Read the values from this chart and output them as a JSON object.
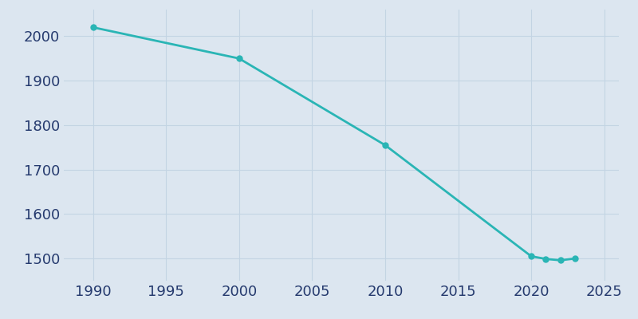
{
  "years": [
    1990,
    2000,
    2010,
    2020,
    2021,
    2022,
    2023
  ],
  "population": [
    2020,
    1950,
    1755,
    1505,
    1499,
    1496,
    1500
  ],
  "line_color": "#2ab5b5",
  "marker_color": "#2ab5b5",
  "background_color": "#dce6f0",
  "plot_bg_color": "#dce6f0",
  "fig_bg_color": "#dce6f0",
  "xlim": [
    1988,
    2026
  ],
  "ylim": [
    1450,
    2060
  ],
  "xticks": [
    1990,
    1995,
    2000,
    2005,
    2010,
    2015,
    2020,
    2025
  ],
  "yticks": [
    1500,
    1600,
    1700,
    1800,
    1900,
    2000
  ],
  "tick_color": "#253a6e",
  "grid_color": "#c3d4e3",
  "line_width": 2.0,
  "marker_size": 5,
  "tick_fontsize": 13
}
